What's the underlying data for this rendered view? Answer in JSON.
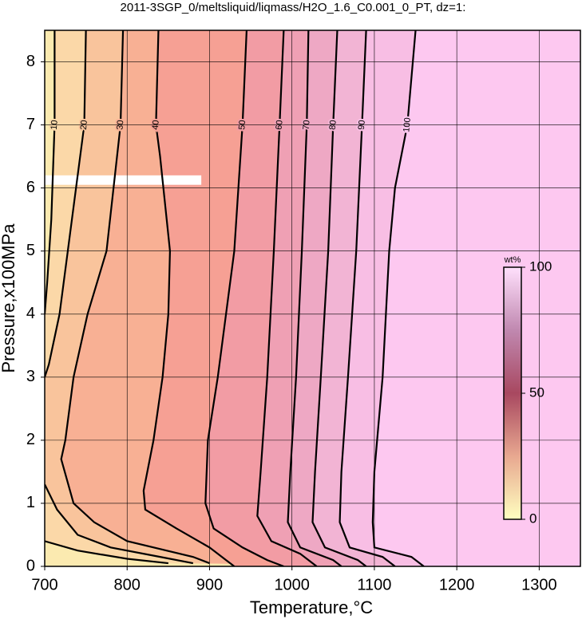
{
  "chart_data": {
    "type": "contour",
    "title": "2011-3SGP_0/meltsliquid/liqmass/H2O_1.6_C0.001_0_PT, dz=1:",
    "xlabel": "Temperature,°C",
    "ylabel": "Pressure,x100MPa",
    "xlim": [
      700,
      1350
    ],
    "ylim": [
      0,
      8.5
    ],
    "xticks": [
      700,
      800,
      900,
      1000,
      1100,
      1200,
      1300
    ],
    "yticks": [
      0,
      1,
      2,
      3,
      4,
      5,
      6,
      7,
      8
    ],
    "grid": true,
    "background": "#fbeab0",
    "contours": [
      {
        "level": 10,
        "color": "#fbd8a8",
        "x": [
          712,
          712,
          708,
          703,
          700,
          null,
          700,
          740,
          800,
          850
        ],
        "y": [
          8.5,
          7,
          5.5,
          4.5,
          4.0,
          null,
          0.4,
          0.25,
          0.12,
          0.05
        ]
      },
      {
        "level": 20,
        "color": "#f9c49c",
        "x": [
          750,
          748,
          728,
          718,
          705,
          700,
          null,
          700,
          715,
          740,
          780,
          840,
          880
        ],
        "y": [
          8.5,
          7,
          5,
          4,
          3.2,
          3.0,
          null,
          1.3,
          0.9,
          0.5,
          0.3,
          0.15,
          0.05
        ]
      },
      {
        "level": 30,
        "color": "#f8b094",
        "x": [
          795,
          792,
          775,
          752,
          735,
          725,
          720,
          735,
          760,
          800,
          880,
          900
        ],
        "y": [
          8.5,
          7,
          5,
          4,
          3,
          2,
          1.7,
          1.0,
          0.7,
          0.4,
          0.15,
          0.05
        ]
      },
      {
        "level": 40,
        "color": "#f6a094",
        "x": [
          838,
          835,
          840,
          848,
          852,
          850,
          843,
          832,
          820,
          822,
          860,
          900,
          920,
          930
        ],
        "y": [
          8.5,
          7,
          6.5,
          5.5,
          5.0,
          4,
          3,
          2,
          1.2,
          0.9,
          0.6,
          0.3,
          0.1,
          0
        ]
      },
      {
        "level": 50,
        "color": "#f29ca4",
        "x": [
          945,
          940,
          935,
          930,
          920,
          910,
          898,
          895,
          905,
          940,
          970,
          990
        ],
        "y": [
          8.5,
          7,
          6,
          5,
          4,
          3,
          2,
          1,
          0.6,
          0.3,
          0.1,
          0
        ]
      },
      {
        "level": 60,
        "color": "#efa0b4",
        "x": [
          990,
          985,
          978,
          970,
          962,
          958,
          975,
          1010,
          1030
        ],
        "y": [
          8.5,
          7,
          5,
          3,
          1.5,
          0.8,
          0.4,
          0.2,
          0
        ]
      },
      {
        "level": 70,
        "color": "#eea8c4",
        "x": [
          1020,
          1018,
          1012,
          1005,
          998,
          995,
          1010,
          1050,
          1060
        ],
        "y": [
          8.5,
          7,
          5,
          3,
          1.5,
          0.7,
          0.3,
          0.1,
          0
        ]
      },
      {
        "level": 80,
        "color": "#f2b4d4",
        "x": [
          1055,
          1050,
          1044,
          1035,
          1028,
          1025,
          1040,
          1080,
          1090
        ],
        "y": [
          8.5,
          7,
          5,
          3,
          1.5,
          0.7,
          0.3,
          0.1,
          0
        ]
      },
      {
        "level": 90,
        "color": "#f8bee4",
        "x": [
          1090,
          1085,
          1078,
          1068,
          1060,
          1058,
          1070,
          1110,
          1125
        ],
        "y": [
          8.5,
          7,
          5,
          3,
          1.5,
          0.7,
          0.3,
          0.15,
          0
        ]
      },
      {
        "level": 100,
        "color": "#fdc8f0",
        "x": [
          1150,
          1140,
          1125,
          1118,
          1110,
          1100,
          1098,
          1100,
          1145,
          1160
        ],
        "y": [
          8.5,
          7,
          6,
          5,
          3,
          1.5,
          0.7,
          0.3,
          0.15,
          0
        ]
      }
    ],
    "colorbar": {
      "label": "wt%",
      "lim": [
        0,
        100
      ],
      "ticks": [
        0,
        50,
        100
      ],
      "colors": [
        "#ffffc0",
        "#e8a890",
        "#a84860",
        "#c088b0",
        "#ffe0fc"
      ]
    }
  }
}
